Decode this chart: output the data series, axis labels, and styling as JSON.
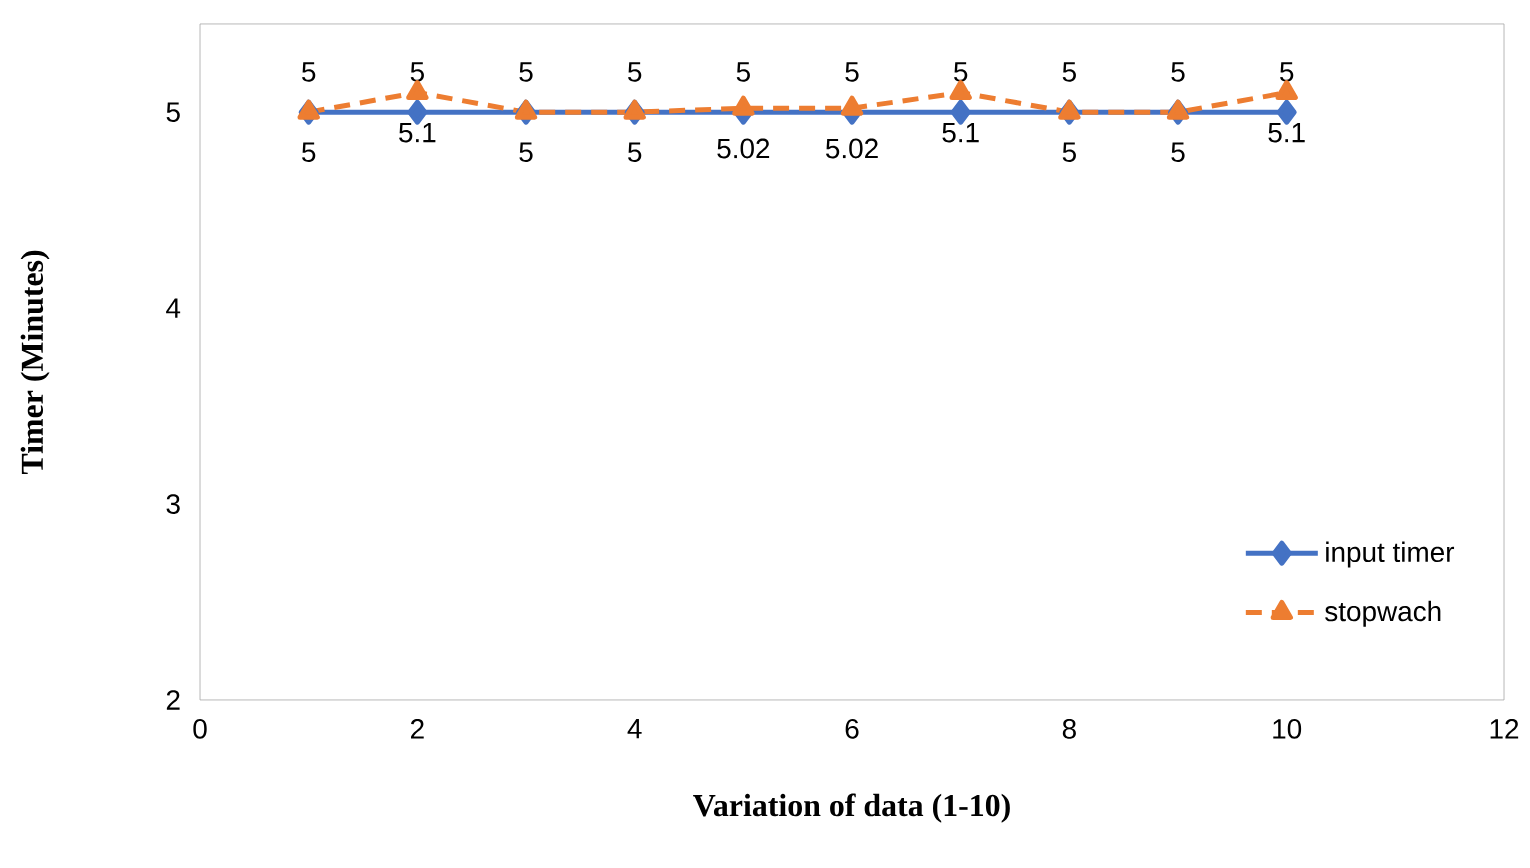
{
  "chart_data": {
    "type": "line",
    "xlabel": "Variation of data (1-10)",
    "ylabel": "Timer (Minutes)",
    "x": [
      1,
      2,
      3,
      4,
      5,
      6,
      7,
      8,
      9,
      10
    ],
    "series": [
      {
        "name": "input timer",
        "color": "#4472c4",
        "marker": "diamond",
        "line_style": "solid",
        "values": [
          5,
          5,
          5,
          5,
          5,
          5,
          5,
          5,
          5,
          5
        ]
      },
      {
        "name": "stopwach",
        "color": "#ed7d31",
        "marker": "triangle",
        "line_style": "dashed",
        "values": [
          5,
          5.1,
          5,
          5,
          5.02,
          5.02,
          5.1,
          5,
          5,
          5.1
        ]
      }
    ],
    "xlim": [
      0,
      12
    ],
    "xticks": [
      0,
      2,
      4,
      6,
      8,
      10,
      12
    ],
    "ylim": [
      2,
      5.45
    ],
    "yticks": [
      2,
      3,
      4,
      5
    ],
    "grid": false,
    "legend": "bottom right",
    "data_labels": true
  }
}
